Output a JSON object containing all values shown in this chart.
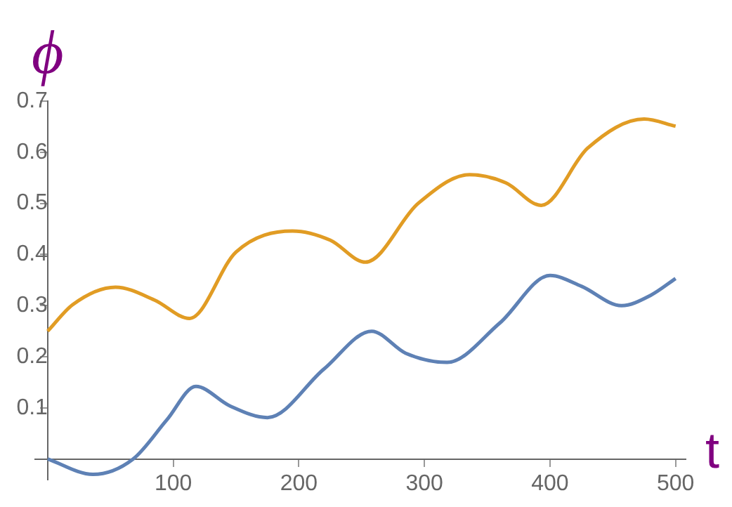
{
  "chart_data": {
    "type": "line",
    "xlabel": "t",
    "ylabel": "ϕ",
    "xlim": [
      -10,
      508
    ],
    "ylim": [
      -0.04,
      0.7
    ],
    "xticks": [
      100,
      200,
      300,
      400,
      500
    ],
    "yticks": [
      0.1,
      0.2,
      0.3,
      0.4,
      0.5,
      0.6,
      0.7
    ],
    "grid": false,
    "legend": false,
    "marker": "none",
    "line_style": "solid",
    "series": [
      {
        "color": "#5e81b5",
        "x": [
          0,
          36,
          68,
          95,
          118,
          145,
          175,
          220,
          258,
          285,
          318,
          360,
          400,
          425,
          457,
          480,
          500
        ],
        "values": [
          0,
          -0.03,
          0,
          0.077,
          0.142,
          0.104,
          0.081,
          0.176,
          0.25,
          0.207,
          0.189,
          0.266,
          0.359,
          0.338,
          0.3,
          0.32,
          0.353
        ]
      },
      {
        "color": "#e19c24",
        "x": [
          0,
          20,
          54,
          85,
          113,
          150,
          195,
          225,
          253,
          295,
          336,
          365,
          393,
          430,
          475,
          500
        ],
        "values": [
          0.25,
          0.302,
          0.336,
          0.311,
          0.275,
          0.405,
          0.446,
          0.428,
          0.385,
          0.5,
          0.556,
          0.54,
          0.496,
          0.608,
          0.665,
          0.651
        ]
      }
    ]
  }
}
